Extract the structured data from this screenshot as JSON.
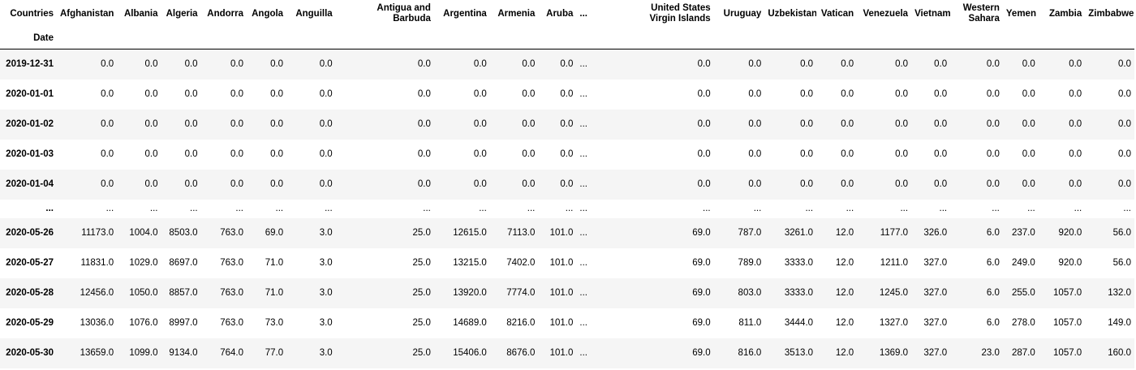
{
  "table": {
    "columns_label": "Countries",
    "index_label": "Date",
    "columns": [
      "Afghanistan",
      "Albania",
      "Algeria",
      "Andorra",
      "Angola",
      "Anguilla",
      "Antigua and Barbuda",
      "Argentina",
      "Armenia",
      "Aruba",
      "...",
      "United States Virgin Islands",
      "Uruguay",
      "Uzbekistan",
      "Vatican",
      "Venezuela",
      "Vietnam",
      "Western Sahara",
      "Yemen",
      "Zambia",
      "Zimbabwe"
    ],
    "rows": [
      {
        "index": "2019-12-31",
        "values": [
          "0.0",
          "0.0",
          "0.0",
          "0.0",
          "0.0",
          "0.0",
          "0.0",
          "0.0",
          "0.0",
          "0.0",
          "...",
          "0.0",
          "0.0",
          "0.0",
          "0.0",
          "0.0",
          "0.0",
          "0.0",
          "0.0",
          "0.0",
          "0.0"
        ]
      },
      {
        "index": "2020-01-01",
        "values": [
          "0.0",
          "0.0",
          "0.0",
          "0.0",
          "0.0",
          "0.0",
          "0.0",
          "0.0",
          "0.0",
          "0.0",
          "...",
          "0.0",
          "0.0",
          "0.0",
          "0.0",
          "0.0",
          "0.0",
          "0.0",
          "0.0",
          "0.0",
          "0.0"
        ]
      },
      {
        "index": "2020-01-02",
        "values": [
          "0.0",
          "0.0",
          "0.0",
          "0.0",
          "0.0",
          "0.0",
          "0.0",
          "0.0",
          "0.0",
          "0.0",
          "...",
          "0.0",
          "0.0",
          "0.0",
          "0.0",
          "0.0",
          "0.0",
          "0.0",
          "0.0",
          "0.0",
          "0.0"
        ]
      },
      {
        "index": "2020-01-03",
        "values": [
          "0.0",
          "0.0",
          "0.0",
          "0.0",
          "0.0",
          "0.0",
          "0.0",
          "0.0",
          "0.0",
          "0.0",
          "...",
          "0.0",
          "0.0",
          "0.0",
          "0.0",
          "0.0",
          "0.0",
          "0.0",
          "0.0",
          "0.0",
          "0.0"
        ]
      },
      {
        "index": "2020-01-04",
        "values": [
          "0.0",
          "0.0",
          "0.0",
          "0.0",
          "0.0",
          "0.0",
          "0.0",
          "0.0",
          "0.0",
          "0.0",
          "...",
          "0.0",
          "0.0",
          "0.0",
          "0.0",
          "0.0",
          "0.0",
          "0.0",
          "0.0",
          "0.0",
          "0.0"
        ]
      },
      {
        "index": "...",
        "values": [
          "...",
          "...",
          "...",
          "...",
          "...",
          "...",
          "...",
          "...",
          "...",
          "...",
          "...",
          "...",
          "...",
          "...",
          "...",
          "...",
          "...",
          "...",
          "...",
          "...",
          "..."
        ]
      },
      {
        "index": "2020-05-26",
        "values": [
          "11173.0",
          "1004.0",
          "8503.0",
          "763.0",
          "69.0",
          "3.0",
          "25.0",
          "12615.0",
          "7113.0",
          "101.0",
          "...",
          "69.0",
          "787.0",
          "3261.0",
          "12.0",
          "1177.0",
          "326.0",
          "6.0",
          "237.0",
          "920.0",
          "56.0"
        ]
      },
      {
        "index": "2020-05-27",
        "values": [
          "11831.0",
          "1029.0",
          "8697.0",
          "763.0",
          "71.0",
          "3.0",
          "25.0",
          "13215.0",
          "7402.0",
          "101.0",
          "...",
          "69.0",
          "789.0",
          "3333.0",
          "12.0",
          "1211.0",
          "327.0",
          "6.0",
          "249.0",
          "920.0",
          "56.0"
        ]
      },
      {
        "index": "2020-05-28",
        "values": [
          "12456.0",
          "1050.0",
          "8857.0",
          "763.0",
          "71.0",
          "3.0",
          "25.0",
          "13920.0",
          "7774.0",
          "101.0",
          "...",
          "69.0",
          "803.0",
          "3333.0",
          "12.0",
          "1245.0",
          "327.0",
          "6.0",
          "255.0",
          "1057.0",
          "132.0"
        ]
      },
      {
        "index": "2020-05-29",
        "values": [
          "13036.0",
          "1076.0",
          "8997.0",
          "763.0",
          "73.0",
          "3.0",
          "25.0",
          "14689.0",
          "8216.0",
          "101.0",
          "...",
          "69.0",
          "811.0",
          "3444.0",
          "12.0",
          "1327.0",
          "327.0",
          "6.0",
          "278.0",
          "1057.0",
          "149.0"
        ]
      },
      {
        "index": "2020-05-30",
        "values": [
          "13659.0",
          "1099.0",
          "9134.0",
          "764.0",
          "77.0",
          "3.0",
          "25.0",
          "15406.0",
          "8676.0",
          "101.0",
          "...",
          "69.0",
          "816.0",
          "3513.0",
          "12.0",
          "1369.0",
          "327.0",
          "23.0",
          "287.0",
          "1057.0",
          "160.0"
        ]
      }
    ]
  }
}
